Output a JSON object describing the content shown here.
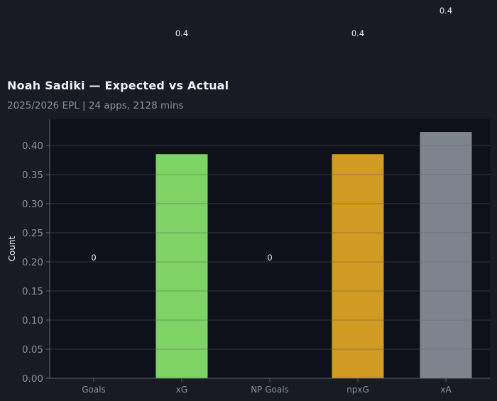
{
  "chart_data": {
    "type": "bar",
    "title": "Noah Sadiki — Expected vs Actual",
    "subtitle": "2025/2026 EPL | 24 apps, 2128 mins",
    "xlabel": "",
    "ylabel": "Count",
    "categories": [
      "Goals",
      "xG",
      "NP Goals",
      "npxG",
      "xA"
    ],
    "values": [
      0,
      0.385,
      0,
      0.385,
      0.423
    ],
    "data_labels": [
      "0",
      "0.4",
      "0",
      "0.4",
      "0.4"
    ],
    "colors": [
      "#7dd363",
      "#7dd363",
      "#7dd363",
      "#d19a22",
      "#7e848e"
    ],
    "ylim": [
      0,
      0.445
    ],
    "yticks": [
      "0.00",
      "0.05",
      "0.10",
      "0.15",
      "0.20",
      "0.25",
      "0.30",
      "0.35",
      "0.40"
    ],
    "grid": true,
    "legend": "none",
    "background": "#0e1119"
  }
}
